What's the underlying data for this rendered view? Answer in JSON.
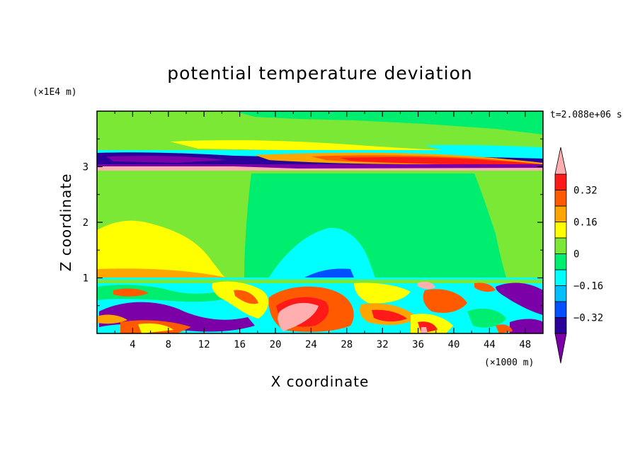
{
  "chart_data": {
    "type": "heatmap",
    "title": "potential temperature deviation",
    "xlabel": "X coordinate",
    "ylabel": "Z coordinate",
    "x_scale_label": "(×1000 m)",
    "y_scale_label": "(×1E4 m)",
    "time_label": "t=2.088e+06 s",
    "xlim": [
      0,
      50
    ],
    "ylim": [
      0,
      4
    ],
    "x_ticks": [
      4,
      8,
      12,
      16,
      20,
      24,
      28,
      32,
      36,
      40,
      44,
      48
    ],
    "y_ticks": [
      1,
      2,
      3
    ],
    "colorbar": {
      "levels": [
        -0.4,
        -0.32,
        -0.24,
        -0.16,
        -0.08,
        0,
        0.08,
        0.16,
        0.24,
        0.32,
        0.4
      ],
      "labels": [
        "0.32",
        "0.16",
        "0",
        "−0.16",
        "−0.32"
      ],
      "label_values": [
        0.32,
        0.16,
        0,
        -0.16,
        -0.32
      ],
      "colors": [
        "#7b00a8",
        "#2a009a",
        "#0050ff",
        "#00bfff",
        "#00ffff",
        "#00ee70",
        "#7ae835",
        "#ffff00",
        "#ffa500",
        "#ff5a00",
        "#ff1a1a",
        "#ffafaf"
      ],
      "extend": "both"
    }
  }
}
